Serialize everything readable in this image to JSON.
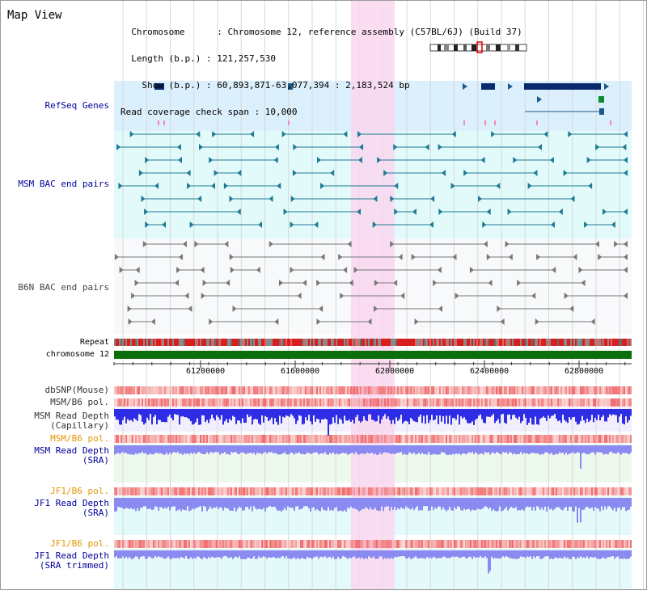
{
  "header": {
    "title": "Map View",
    "info_lines": [
      "  Chromosome      : Chromosome 12, reference assembly (C57BL/6J) (Build 37)",
      "  Length (b.p.) : 121,257,530",
      "    Show (b.p.) : 60,893,871-63,077,394 : 2,183,524 bp",
      "Read coverage check span : 10,000"
    ]
  },
  "tracks": {
    "refseq": "RefSeq Genes",
    "msm_bac": "MSM BAC end pairs",
    "b6n_bac": "B6N BAC end pairs",
    "repeat": "Repeat",
    "chromosome": "chromosome 12",
    "dbsnp": "dbSNP(Mouse)",
    "msm_b6_pol": "MSM/B6 pol.",
    "msm_depth_cap_1": "MSM Read Depth",
    "msm_depth_cap_2": "(Capillary)",
    "msm_b6_pol_2": "MSM/B6 pol.",
    "msm_depth_sra_1": "MSM Read Depth",
    "msm_depth_sra_2": "(SRA)",
    "jf1_b6_pol": "JF1/B6 pol.",
    "jf1_depth_sra_1": "JF1 Read Depth",
    "jf1_depth_sra_2": "(SRA)",
    "jf1_b6_pol_2": "JF1/B6 pol.",
    "jf1_depth_trim_1": "JF1 Read Depth",
    "jf1_depth_trim_2": "(SRA trimmed)"
  },
  "axis": {
    "ticks": [
      "61200000",
      "61600000",
      "62000000",
      "62400000",
      "62800000"
    ],
    "tick_values": [
      61200000,
      61600000,
      62000000,
      62400000,
      62800000
    ]
  },
  "colors": {
    "refseq_bg": "#dbeffc",
    "msm_bac_bg": "#e2fafa",
    "b6n_bac_bg": "#f7f9fb",
    "highlight": "#f9d7ef",
    "gene": "#0a2a6e",
    "chromosome": "#0a6e0a",
    "pol": "#f06a6a",
    "depth_cap": "#2d2de6",
    "depth_sra": "#8a8af0"
  }
}
